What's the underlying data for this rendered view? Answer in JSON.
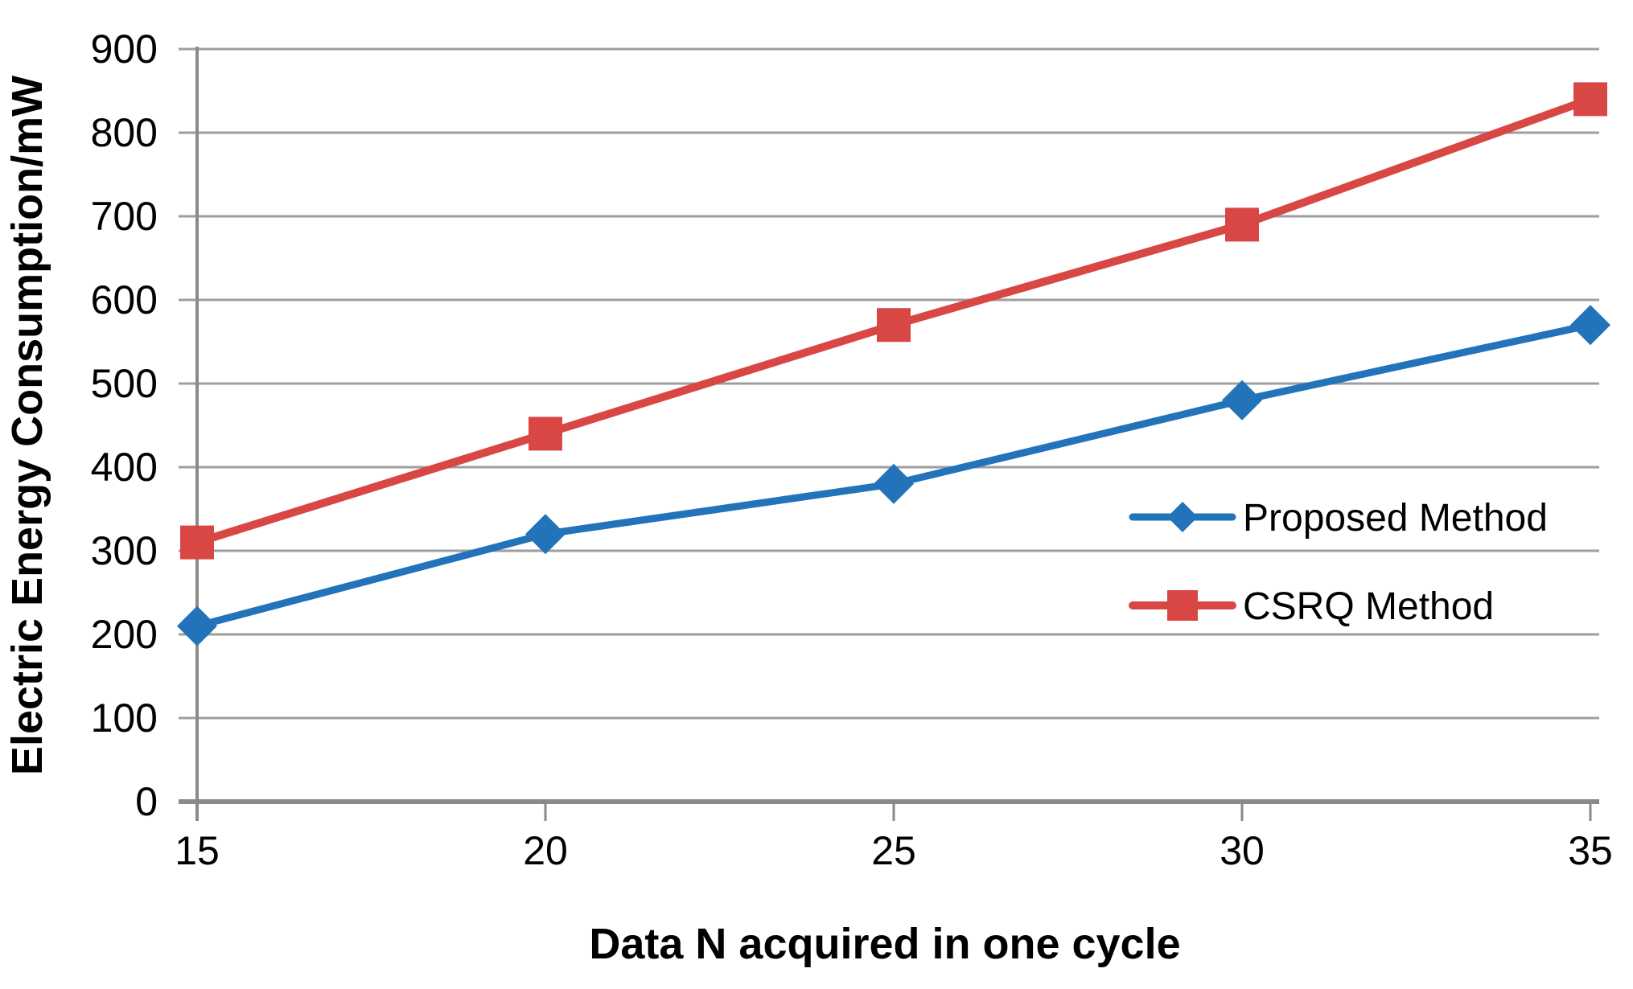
{
  "chart_data": {
    "type": "line",
    "title": "",
    "xlabel": "Data N acquired in one cycle",
    "ylabel": "Electric Energy Consumption/mW",
    "x": [
      15,
      20,
      25,
      30,
      35
    ],
    "series": [
      {
        "name": "Proposed Method",
        "marker": "diamond",
        "color": "#2273B9",
        "values": [
          210,
          320,
          380,
          480,
          570
        ]
      },
      {
        "name": "CSRQ Method",
        "marker": "square",
        "color": "#D94744",
        "values": [
          310,
          440,
          570,
          690,
          840
        ]
      }
    ],
    "ylim": [
      0,
      900
    ],
    "y_ticks": [
      0,
      100,
      200,
      300,
      400,
      500,
      600,
      700,
      800,
      900
    ],
    "grid": true,
    "legend_position": "inside-right-middle"
  },
  "colors": {
    "background": "#FFFFFF",
    "gridline": "#9E9E9E",
    "axis": "#8A8A8A",
    "text": "#000000",
    "series_blue": "#2273B9",
    "series_red": "#D94744"
  }
}
